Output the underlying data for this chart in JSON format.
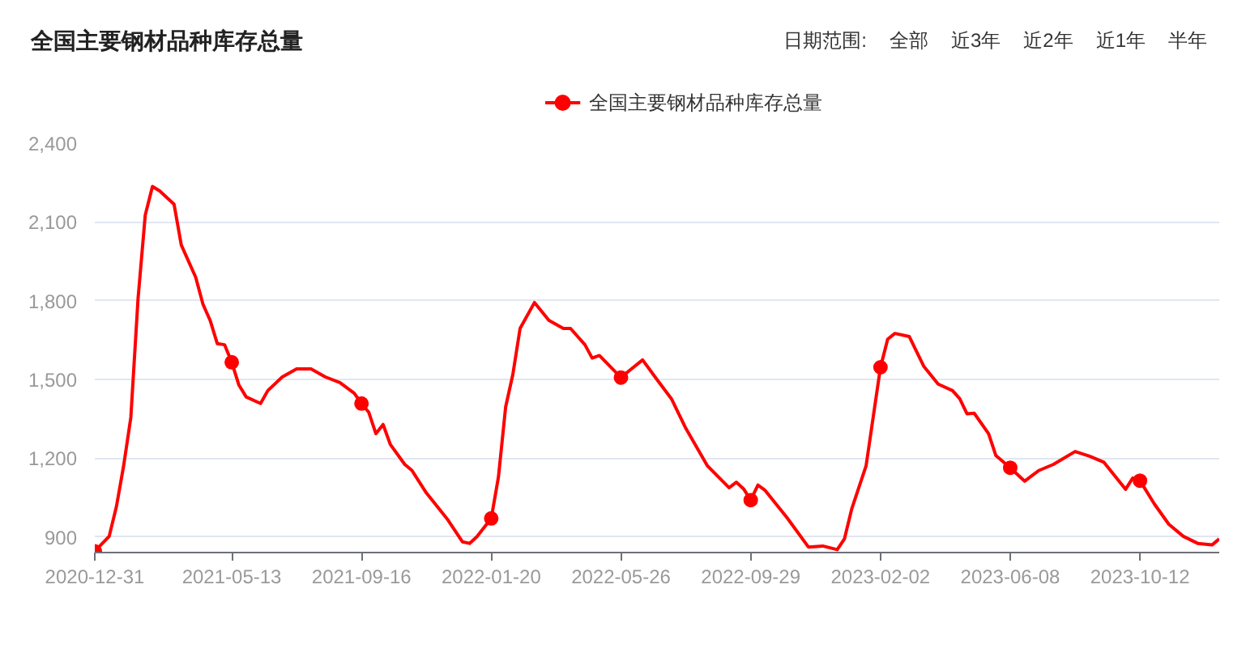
{
  "chart_data": {
    "type": "line",
    "title": "全国主要钢材品种库存总量",
    "annotations": [
      "日期范围:",
      "全部",
      "近3年",
      "近2年",
      "近1年",
      "半年"
    ],
    "x": [
      "2020-12-31",
      "2021-01-14",
      "2021-01-21",
      "2021-01-28",
      "2021-02-04",
      "2021-02-11",
      "2021-02-18",
      "2021-02-25",
      "2021-03-04",
      "2021-03-18",
      "2021-03-25",
      "2021-04-08",
      "2021-04-15",
      "2021-04-22",
      "2021-04-29",
      "2021-05-06",
      "2021-05-13",
      "2021-05-20",
      "2021-05-27",
      "2021-06-10",
      "2021-06-17",
      "2021-07-01",
      "2021-07-15",
      "2021-07-29",
      "2021-08-12",
      "2021-08-26",
      "2021-09-09",
      "2021-09-16",
      "2021-09-23",
      "2021-09-30",
      "2021-10-07",
      "2021-10-14",
      "2021-10-28",
      "2021-11-04",
      "2021-11-18",
      "2021-12-09",
      "2021-12-23",
      "2021-12-30",
      "2022-01-06",
      "2022-01-20",
      "2022-01-27",
      "2022-02-03",
      "2022-02-10",
      "2022-02-17",
      "2022-03-03",
      "2022-03-17",
      "2022-03-31",
      "2022-04-07",
      "2022-04-21",
      "2022-04-28",
      "2022-05-05",
      "2022-05-26",
      "2022-06-02",
      "2022-06-16",
      "2022-06-30",
      "2022-07-14",
      "2022-07-28",
      "2022-08-18",
      "2022-09-08",
      "2022-09-15",
      "2022-09-22",
      "2022-09-29",
      "2022-10-06",
      "2022-10-13",
      "2022-11-03",
      "2022-11-24",
      "2022-12-08",
      "2022-12-22",
      "2022-12-29",
      "2023-01-05",
      "2023-01-19",
      "2023-02-02",
      "2023-02-09",
      "2023-02-16",
      "2023-03-02",
      "2023-03-16",
      "2023-03-30",
      "2023-04-13",
      "2023-04-20",
      "2023-04-27",
      "2023-05-04",
      "2023-05-18",
      "2023-05-25",
      "2023-06-08",
      "2023-06-22",
      "2023-07-06",
      "2023-07-20",
      "2023-08-10",
      "2023-08-24",
      "2023-09-07",
      "2023-09-28",
      "2023-10-05",
      "2023-10-12",
      "2023-10-26",
      "2023-11-09",
      "2023-11-23",
      "2023-12-07",
      "2023-12-21",
      "2023-12-28"
    ],
    "series": [
      {
        "type": "scatter",
        "color": "#ff0000",
        "x": [
          "2020-12-31",
          "2021-05-13",
          "2021-09-16",
          "2022-01-20",
          "2022-05-26",
          "2022-09-29",
          "2023-02-02",
          "2023-06-08",
          "2023-10-12"
        ],
        "values": [
          845,
          1565,
          1408,
          970,
          1507,
          1040,
          1546,
          1163,
          1114
        ]
      },
      {
        "name": "全国主要钢材品种库存总量",
        "color": "#ff0000",
        "values": [
          845,
          902,
          1015,
          1170,
          1355,
          1807,
          2126,
          2235,
          2218,
          2167,
          2012,
          1889,
          1787,
          1725,
          1636,
          1632,
          1565,
          1478,
          1433,
          1408,
          1457,
          1509,
          1540,
          1540,
          1509,
          1488,
          1447,
          1408,
          1375,
          1293,
          1328,
          1252,
          1176,
          1153,
          1067,
          964,
          881,
          875,
          900,
          970,
          1128,
          1395,
          1519,
          1694,
          1793,
          1725,
          1694,
          1694,
          1632,
          1581,
          1591,
          1507,
          1530,
          1574,
          1499,
          1426,
          1313,
          1170,
          1087,
          1108,
          1083,
          1040,
          1097,
          1077,
          974,
          861,
          865,
          851,
          892,
          1005,
          1170,
          1546,
          1653,
          1675,
          1663,
          1550,
          1482,
          1457,
          1426,
          1369,
          1371,
          1293,
          1210,
          1163,
          1112,
          1153,
          1176,
          1225,
          1207,
          1184,
          1081,
          1124,
          1114,
          1025,
          948,
          902,
          875,
          869,
          892
        ]
      }
    ],
    "xlim": [
      "2020-12-31",
      "2023-12-28"
    ],
    "xticks": [
      "2020-12-31",
      "2021-05-13",
      "2021-09-16",
      "2022-01-20",
      "2022-05-26",
      "2022-09-29",
      "2023-02-02",
      "2023-06-08",
      "2023-10-12"
    ],
    "ylim": [
      840,
      2400
    ],
    "yticks": [
      900,
      {
        "value": 1200,
        "label": "1,200"
      },
      {
        "value": 1500,
        "label": "1,500"
      },
      {
        "value": 1800,
        "label": "1,800"
      },
      {
        "value": 2100,
        "label": "2,100"
      },
      {
        "value": 2400,
        "label": "2,400"
      }
    ],
    "grid": "y",
    "legend": "top",
    "line_style": "solid"
  }
}
